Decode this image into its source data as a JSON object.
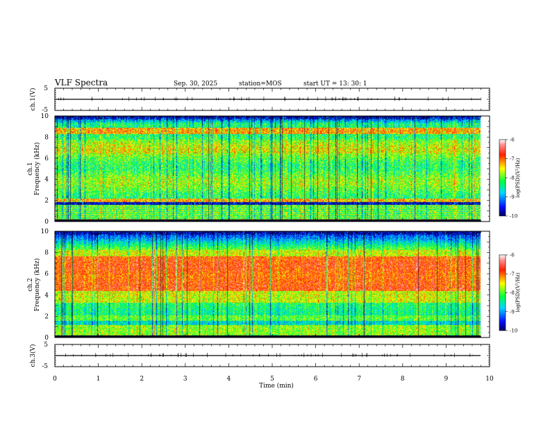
{
  "header": {
    "title": "VLF Spectra",
    "date": "Sep. 30, 2025",
    "station": "station=MOS",
    "start": "start  UT  =  13: 30: 1"
  },
  "chart_data": [
    {
      "id": "ch1-waveform",
      "type": "line",
      "ylabel": "ch.1(V)",
      "ylim": [
        -5,
        5
      ],
      "yticks": [
        "5",
        "-5"
      ],
      "xlim": [
        0,
        10
      ],
      "baseline": 0,
      "data_end_min": 9.85
    },
    {
      "id": "ch1-spectrogram",
      "type": "heatmap",
      "ylabel": "ch.1",
      "ylabel2": "Frequency (kHz)",
      "ylim": [
        0,
        10
      ],
      "yticks": [
        "0",
        "2",
        "4",
        "6",
        "8",
        "10"
      ],
      "xlim": [
        0,
        10
      ],
      "data_end_min": 9.85,
      "colorbar": {
        "label": "log(PSD)(V²/Hz)",
        "range": [
          -10,
          -6
        ],
        "ticks": [
          "-6",
          "-7",
          "-8",
          "-9",
          "-10"
        ]
      }
    },
    {
      "id": "ch2-spectrogram",
      "type": "heatmap",
      "ylabel": "ch.2",
      "ylabel2": "Frequency (kHz)",
      "ylim": [
        0,
        10
      ],
      "yticks": [
        "0",
        "2",
        "4",
        "6",
        "8",
        "10"
      ],
      "xlim": [
        0,
        10
      ],
      "data_end_min": 9.85,
      "colorbar": {
        "label": "log(PSD)(V²/Hz)",
        "range": [
          -10,
          -6
        ],
        "ticks": [
          "-6",
          "-7",
          "-8",
          "-9",
          "-10"
        ]
      }
    },
    {
      "id": "ch3-waveform",
      "type": "line",
      "ylabel": "ch.3(V)",
      "ylim": [
        -5,
        5
      ],
      "yticks": [
        "5",
        "-5"
      ],
      "xlim": [
        0,
        10
      ],
      "baseline": 0,
      "data_end_min": 9.85
    }
  ],
  "xaxis": {
    "label": "Time  (min)",
    "ticks": [
      "0",
      "1",
      "2",
      "3",
      "4",
      "5",
      "6",
      "7",
      "8",
      "9",
      "10"
    ]
  }
}
